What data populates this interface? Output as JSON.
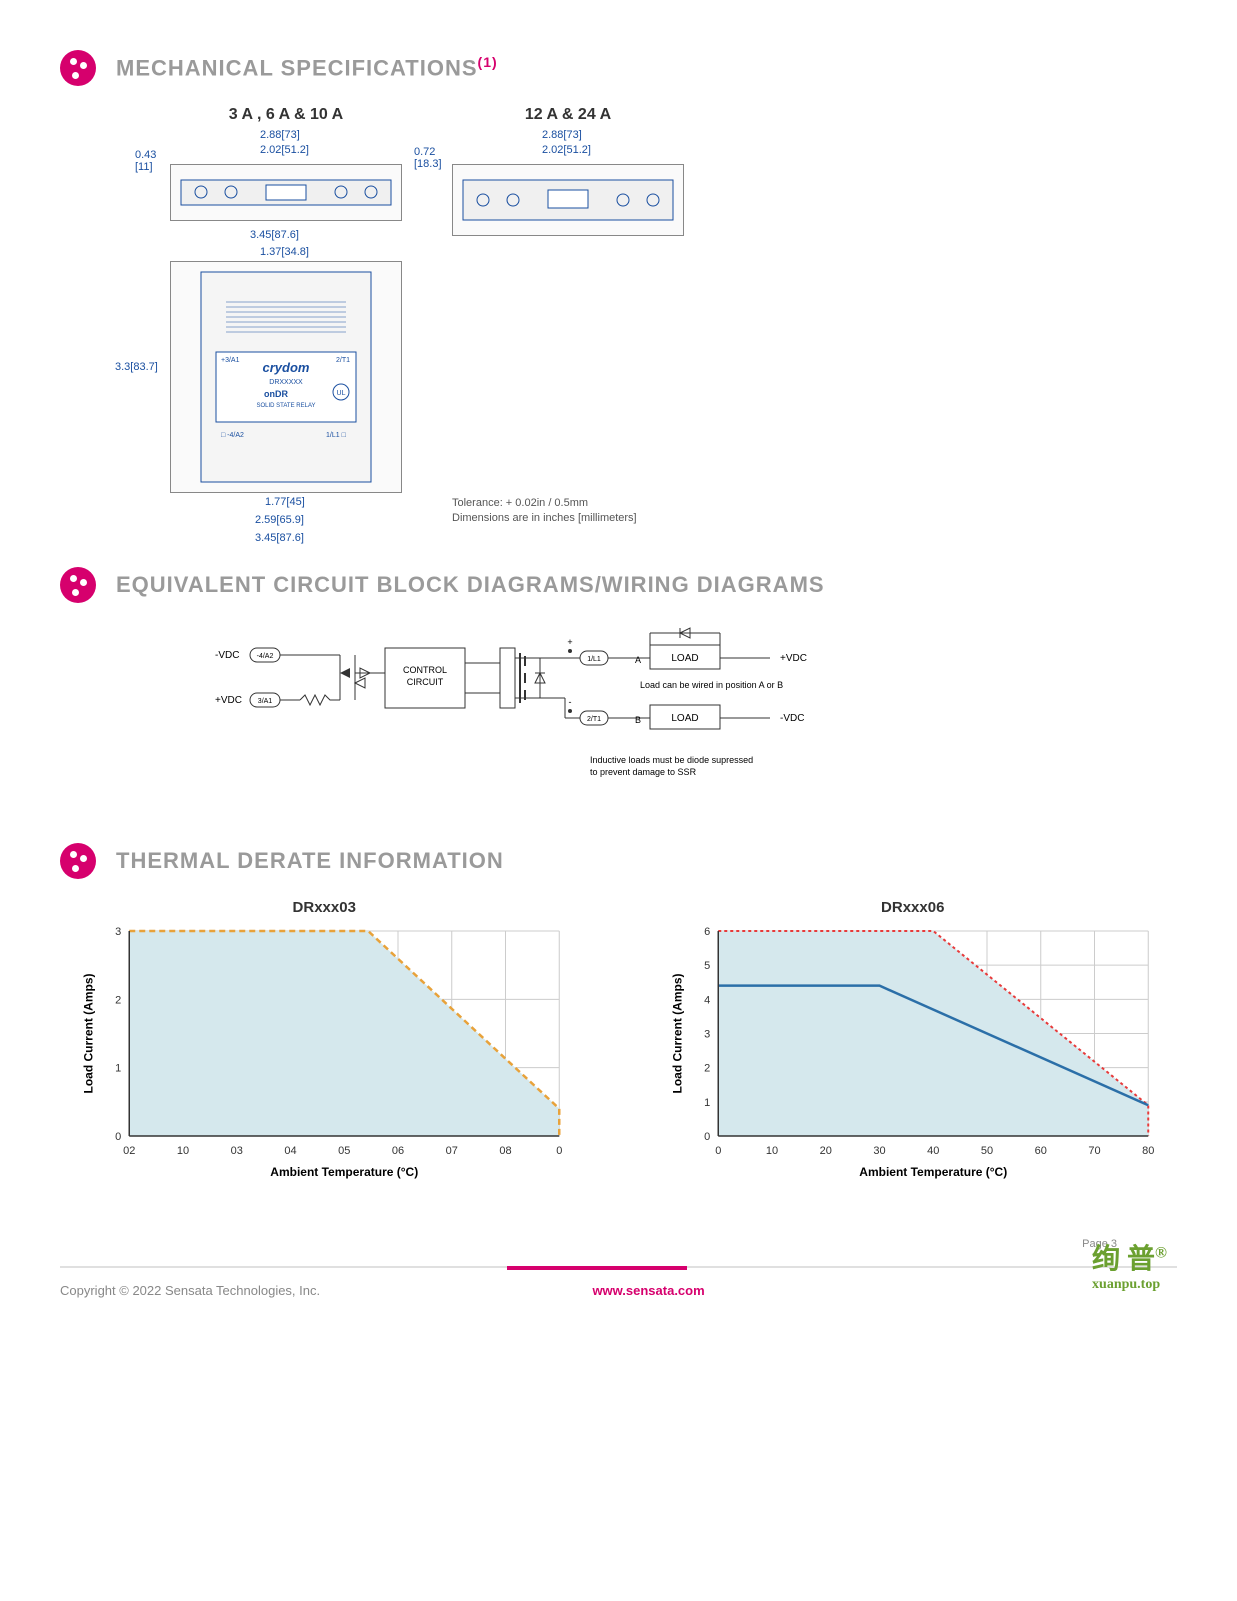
{
  "sections": {
    "mechanical": {
      "title": "MECHANICAL SPECIFICATIONS",
      "superscript": "(1)",
      "col1_label": "3 A , 6 A & 10 A",
      "col2_label": "12 A & 24 A",
      "dims": {
        "a_height_left": "0.43\n[11]",
        "a_top1": "2.88[73]",
        "a_top2": "2.02[51.2]",
        "a_width_overall": "3.45[87.6]",
        "a_front_w1": "1.37[34.8]",
        "a_front_h": "3.3[83.7]",
        "a_front_b1": "1.77[45]",
        "a_front_b2": "2.59[65.9]",
        "a_front_b3": "3.45[87.6]",
        "b_height_left": "0.72\n[18.3]",
        "b_top1": "2.88[73]",
        "b_top2": "2.02[51.2]",
        "product_label": "crydom",
        "product_sub": "DRXXXXX",
        "product_series": "onDR",
        "product_type": "SOLID STATE RELAY",
        "terminals": [
          "+3/A1",
          "2/T1",
          "□ -4/A2",
          "1/L1 □"
        ]
      },
      "tolerance_line1": "Tolerance: + 0.02in / 0.5mm",
      "tolerance_line2": "Dimensions are in inches [millimeters]"
    },
    "circuit": {
      "title": "EQUIVALENT CIRCUIT BLOCK DIAGRAMS/WIRING DIAGRAMS",
      "labels": {
        "vdc_neg": "-VDC",
        "vdc_pos": "+VDC",
        "term1": "-4/A2",
        "term2": "3/A1",
        "control": "CONTROL\nCIRCUIT",
        "term3": "1/L1",
        "term4": "2/T1",
        "load": "LOAD",
        "posA": "A",
        "posB": "B",
        "out_pos": "+VDC",
        "out_neg": "-VDC",
        "note1": "Load can be wired in position A or B",
        "note2": "Inductive loads must be diode supressed\nto prevent damage to SSR"
      }
    },
    "thermal": {
      "title": "THERMAL DERATE INFORMATION",
      "chart1": {
        "title": "DRxxx03",
        "ylabel": "Load Current (Amps)",
        "xlabel": "Ambient Temperature (°C)",
        "yticks": [
          0,
          1,
          2,
          3
        ],
        "xticks": [
          "02",
          "10",
          "03",
          "04",
          "05",
          "06",
          "07",
          "08",
          "0"
        ],
        "ylim": [
          0,
          3
        ],
        "fill_color": "#d5e8ed",
        "line1": {
          "color": "#e8a23a",
          "dash": "6,4",
          "width": 2.5,
          "points": [
            [
              0,
              3
            ],
            [
              50,
              3
            ],
            [
              90,
              0.4
            ],
            [
              90,
              0
            ]
          ]
        },
        "grid_color": "#cccccc",
        "bg": "#ffffff"
      },
      "chart2": {
        "title": "DRxxx06",
        "ylabel": "Load Current (Amps)",
        "xlabel": "Ambient Temperature (°C)",
        "yticks": [
          0,
          1,
          2,
          3,
          4,
          5,
          6
        ],
        "xticks": [
          0,
          10,
          20,
          30,
          40,
          50,
          60,
          70,
          80
        ],
        "ylim": [
          0,
          6
        ],
        "xlim": [
          0,
          80
        ],
        "fill_color": "#d5e8ed",
        "line_dashed": {
          "color": "#e83a3a",
          "dash": "3,3",
          "width": 2,
          "points": [
            [
              0,
              6
            ],
            [
              40,
              6
            ],
            [
              80,
              0.9
            ],
            [
              80,
              0
            ]
          ]
        },
        "line_solid": {
          "color": "#2b6fa8",
          "dash": "none",
          "width": 2.5,
          "points": [
            [
              0,
              4.4
            ],
            [
              30,
              4.4
            ],
            [
              80,
              0.9
            ]
          ]
        },
        "grid_color": "#cccccc",
        "bg": "#ffffff"
      }
    }
  },
  "footer": {
    "copyright": "Copyright © 2022 Sensata Technologies, Inc.",
    "link": "www.sensata.com",
    "page": "Page 3"
  },
  "watermark": {
    "main": "绚 普",
    "reg": "®",
    "sub": "xuanpu.top"
  },
  "colors": {
    "accent": "#d6006d",
    "heading": "#9a9a9a",
    "dim_blue": "#1a4fa0"
  }
}
